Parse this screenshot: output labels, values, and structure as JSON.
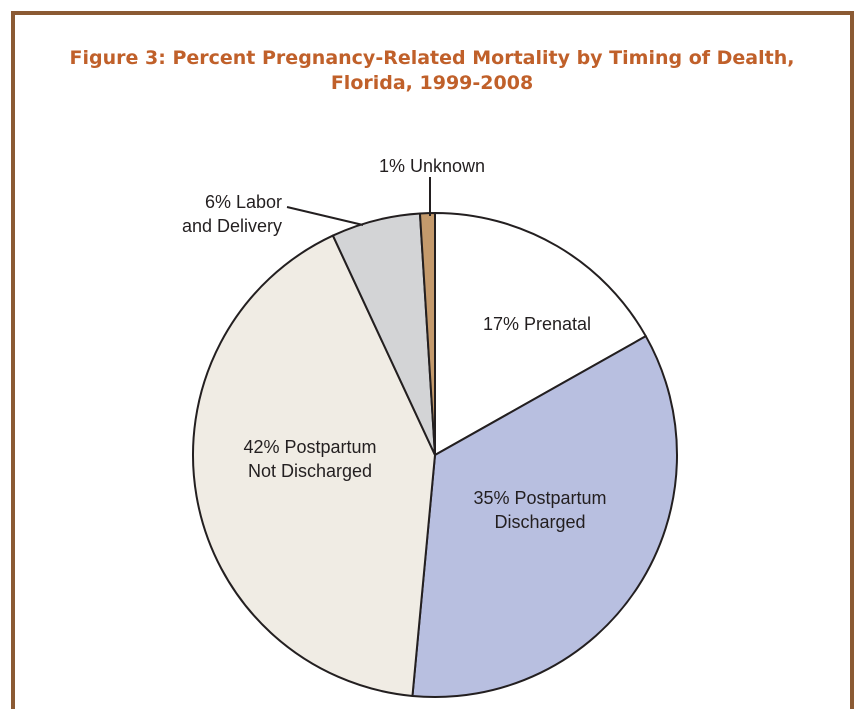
{
  "chart_data": {
    "type": "pie",
    "title": [
      "Figure 3: Percent Pregnancy-Related Mortality by Timing of Dealth,",
      "Florida, 1999-2008"
    ],
    "labels": [
      [
        "17% Prenatal"
      ],
      [
        "35% Postpartum",
        "Discharged"
      ],
      [
        "42% Postpartum",
        "Not Discharged"
      ],
      [
        "6% Labor",
        "and Delivery"
      ],
      [
        "1% Unknown"
      ]
    ],
    "values": [
      17,
      35,
      42,
      6,
      1
    ],
    "colors": [
      "#ffffff",
      "#b8bfe0",
      "#f0ece4",
      "#d3d4d6",
      "#c49a6c"
    ]
  }
}
